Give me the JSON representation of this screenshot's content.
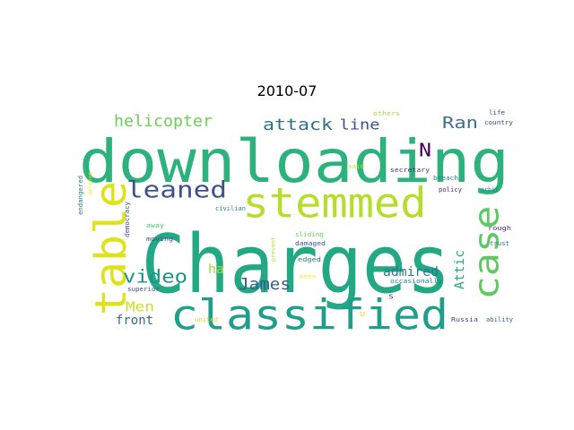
{
  "title": "2010-07",
  "colors": {
    "background": "#ffffff",
    "palette": "viridis"
  },
  "words": [
    {
      "text": "Charges",
      "color": "#23a884"
    },
    {
      "text": "downloading",
      "color": "#2db27d"
    },
    {
      "text": "stemmed",
      "color": "#b5de2b"
    },
    {
      "text": "classified",
      "color": "#1f9e89"
    },
    {
      "text": "table",
      "color": "#dde318"
    },
    {
      "text": "case",
      "color": "#5ec962"
    },
    {
      "text": "leaned",
      "color": "#3b528b"
    },
    {
      "text": "video",
      "color": "#21918c"
    },
    {
      "text": "helicopter",
      "color": "#6ece58"
    },
    {
      "text": "attack",
      "color": "#2c728e"
    },
    {
      "text": "Ran",
      "color": "#3e6e8e"
    },
    {
      "text": "line",
      "color": "#3b528b"
    },
    {
      "text": "N",
      "color": "#440154"
    },
    {
      "text": "James",
      "color": "#355f8d"
    },
    {
      "text": "admired",
      "color": "#2a788e"
    },
    {
      "text": "Attic",
      "color": "#22a884"
    },
    {
      "text": "Men",
      "color": "#c8e020"
    },
    {
      "text": "ha",
      "color": "#a0da39"
    },
    {
      "text": "front",
      "color": "#31688e"
    },
    {
      "text": "others",
      "color": "#a0da39"
    },
    {
      "text": "life",
      "color": "#404688"
    },
    {
      "text": "country",
      "color": "#414487"
    },
    {
      "text": "said",
      "color": "#c2df23"
    },
    {
      "text": "secretary",
      "color": "#46327e"
    },
    {
      "text": "breach",
      "color": "#277f8e"
    },
    {
      "text": "policy",
      "color": "#482878"
    },
    {
      "text": "orbit",
      "color": "#25858e"
    },
    {
      "text": "defense",
      "color": "#fde725"
    },
    {
      "text": "endangered",
      "color": "#2a788e"
    },
    {
      "text": "democracy",
      "color": "#3e4989"
    },
    {
      "text": "civilian",
      "color": "#26828e"
    },
    {
      "text": "away",
      "color": "#4ac16d"
    },
    {
      "text": "moving",
      "color": "#3a538b"
    },
    {
      "text": "superior",
      "color": "#3e4a89"
    },
    {
      "text": "united",
      "color": "#d2e21b"
    },
    {
      "text": "prevent",
      "color": "#b8de29"
    },
    {
      "text": "sliding",
      "color": "#6ccd5a"
    },
    {
      "text": "damaged",
      "color": "#3b528b"
    },
    {
      "text": "edged",
      "color": "#2c728e"
    },
    {
      "text": "seen",
      "color": "#fde725"
    },
    {
      "text": "occasionally",
      "color": "#287c8e"
    },
    {
      "text": "s",
      "color": "#404688"
    },
    {
      "text": "U",
      "color": "#e5e419"
    },
    {
      "text": "rough",
      "color": "#46327e"
    },
    {
      "text": "trust",
      "color": "#2c718e"
    },
    {
      "text": "Russia",
      "color": "#3f4889"
    },
    {
      "text": "ability",
      "color": "#33638d"
    }
  ]
}
